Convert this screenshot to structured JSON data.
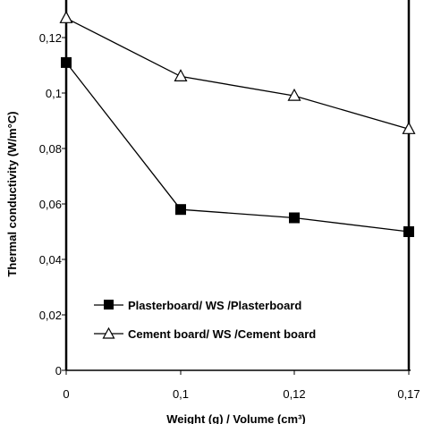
{
  "chart_data": {
    "type": "line",
    "title": "",
    "ylabel": "Thermal conductivity (W/m°C)",
    "xlabel": "Weight (g) / Volume (cm³)",
    "categories": [
      "0",
      "0,1",
      "0,12",
      "0,17"
    ],
    "ylim": [
      0,
      0.14
    ],
    "y_ticks": [
      "0",
      "0,02",
      "0,04",
      "0,06",
      "0,08",
      "0,1",
      "0,12"
    ],
    "y_tick_values": [
      0,
      0.02,
      0.04,
      0.06,
      0.08,
      0.1,
      0.12
    ],
    "grid": false,
    "legend_position": "bottom-left",
    "series": [
      {
        "name": "Plasterboard/ WS /Plasterboard",
        "marker": "filled-square",
        "color": "#000000",
        "values": [
          0.111,
          0.058,
          0.055,
          0.05
        ]
      },
      {
        "name": "Cement board/ WS /Cement board",
        "marker": "open-triangle",
        "color": "#000000",
        "values": [
          0.127,
          0.106,
          0.099,
          0.087
        ]
      }
    ]
  }
}
